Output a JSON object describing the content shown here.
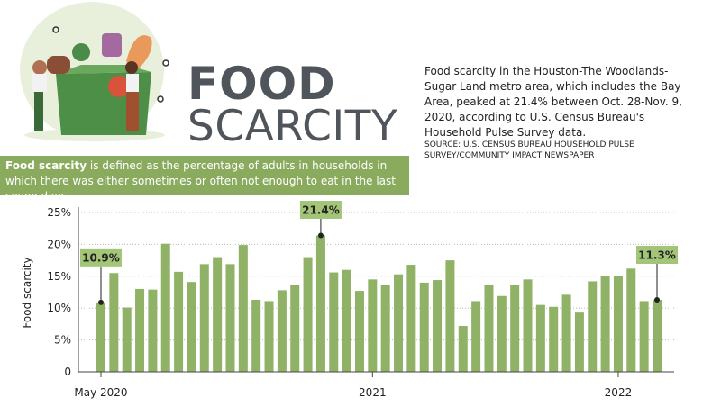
{
  "header": {
    "title_line1": "FOOD",
    "title_line2": "SCARCITY",
    "description": "Food scarcity in the Houston-The Woodlands-Sugar Land metro area, which includes the Bay Area, peaked at 21.4% between Oct. 28-Nov. 9, 2020, according to U.S. Census Bureau's Household Pulse Survey data.",
    "source": "SOURCE: U.S. CENSUS BUREAU HOUSEHOLD PULSE SURVEY/COMMUNITY IMPACT NEWSPAPER"
  },
  "definition": {
    "term": "Food scarcity",
    "text": "is defined as the percentage of adults in households in which there was either sometimes or often not enough to eat in the last seven days."
  },
  "chart_data": {
    "type": "bar",
    "y_label": "Food scarcity",
    "color": "#8fb266",
    "label_color": "#a3c577",
    "grid": true,
    "categories": [
      "May 2020",
      null,
      null,
      null,
      null,
      null,
      null,
      null,
      null,
      null,
      null,
      null,
      null,
      null,
      null,
      null,
      null,
      null,
      null,
      null,
      null,
      "2021",
      null,
      null,
      null,
      null,
      null,
      null,
      null,
      null,
      null,
      null,
      null,
      null,
      null,
      null,
      null,
      null,
      null,
      null,
      "2022",
      null,
      null,
      null
    ],
    "values": [
      10.9,
      15.5,
      10.1,
      13,
      12.9,
      20.1,
      15.7,
      14.1,
      16.9,
      18,
      16.9,
      19.9,
      11.3,
      11.1,
      12.8,
      13.6,
      18,
      21.4,
      15.6,
      16,
      12.7,
      14.5,
      13.7,
      15.3,
      16.8,
      14,
      14.4,
      17.5,
      7.2,
      11.1,
      13.6,
      11.9,
      13.7,
      14.5,
      10.5,
      10.2,
      12.1,
      9.3,
      14.2,
      15.1,
      15.1,
      16.2,
      11.1,
      11.3
    ],
    "value_labels": [
      "10.9%",
      null,
      null,
      null,
      null,
      null,
      null,
      null,
      null,
      null,
      null,
      null,
      null,
      null,
      null,
      null,
      null,
      "21.4%",
      null,
      null,
      null,
      null,
      null,
      null,
      null,
      null,
      null,
      null,
      null,
      null,
      null,
      null,
      null,
      null,
      null,
      null,
      null,
      null,
      null,
      null,
      null,
      null,
      null,
      "11.3%"
    ],
    "ylim": [
      0,
      25
    ],
    "yticks": [
      0,
      {
        "value": 5,
        "label": "5%"
      },
      {
        "value": 10,
        "label": "10%"
      },
      {
        "value": 15,
        "label": "15%"
      },
      {
        "value": 20,
        "label": "20%"
      },
      {
        "value": 25,
        "label": "25%"
      }
    ]
  }
}
